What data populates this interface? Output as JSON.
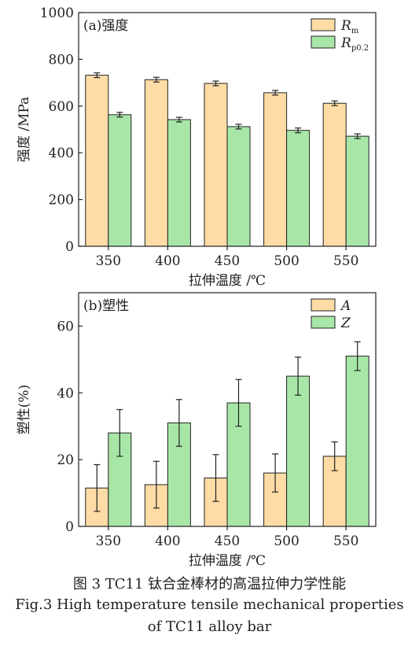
{
  "chart_data": [
    {
      "type": "bar",
      "panel_label": "(a)强度",
      "categories": [
        "350",
        "400",
        "450",
        "500",
        "550"
      ],
      "xlabel": "拉伸温度 /℃",
      "ylabel": "强度 /MPa",
      "ylim": [
        0,
        1000
      ],
      "yticks": [
        "0",
        "200",
        "400",
        "600",
        "800",
        "1000"
      ],
      "legend_position": "top-right",
      "grid": false,
      "series": [
        {
          "name": "R",
          "sub": "m",
          "color": "#FFDCA6",
          "values": [
            732,
            713,
            697,
            657,
            612
          ],
          "errors": [
            10,
            10,
            10,
            10,
            10
          ]
        },
        {
          "name": "R",
          "sub": "p0.2",
          "color": "#A8E6A8",
          "values": [
            563,
            542,
            512,
            496,
            471
          ],
          "errors": [
            10,
            10,
            10,
            10,
            10
          ]
        }
      ]
    },
    {
      "type": "bar",
      "panel_label": "(b)塑性",
      "categories": [
        "350",
        "400",
        "450",
        "500",
        "550"
      ],
      "xlabel": "拉伸温度 /℃",
      "ylabel": "塑性(%)",
      "ylim": [
        0,
        70
      ],
      "yticks": [
        "0",
        "20",
        "40",
        "60"
      ],
      "legend_position": "top-right",
      "grid": false,
      "series": [
        {
          "name": "A",
          "sub": "",
          "color": "#FFDCA6",
          "values": [
            11.5,
            12.5,
            14.5,
            16,
            21
          ],
          "errors": [
            7,
            7,
            7,
            5.7,
            4.3
          ]
        },
        {
          "name": "Z",
          "sub": "",
          "color": "#A8E6A8",
          "values": [
            28,
            31,
            37,
            45,
            51
          ],
          "errors": [
            7,
            7,
            7,
            5.7,
            4.3
          ]
        }
      ]
    }
  ],
  "caption": {
    "cn": "图 3  TC11 钛合金棒材的高温拉伸力学性能",
    "en_line1": "Fig.3  High temperature tensile mechanical properties",
    "en_line2": "of TC11 alloy bar"
  }
}
